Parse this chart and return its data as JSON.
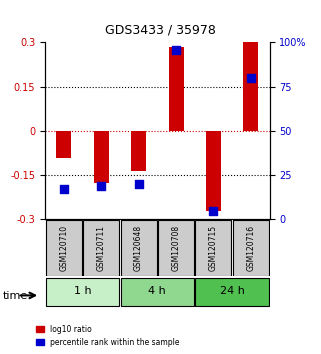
{
  "title": "GDS3433 / 35978",
  "samples": [
    "GSM120710",
    "GSM120711",
    "GSM120648",
    "GSM120708",
    "GSM120715",
    "GSM120716"
  ],
  "log10_ratio": [
    -0.09,
    -0.175,
    -0.135,
    0.285,
    -0.27,
    0.3
  ],
  "percentile_rank": [
    17,
    19,
    20,
    96,
    5,
    80
  ],
  "groups": [
    {
      "label": "1 h",
      "start": 0,
      "end": 1,
      "color": "#c8f0c8"
    },
    {
      "label": "4 h",
      "start": 2,
      "end": 3,
      "color": "#90d890"
    },
    {
      "label": "24 h",
      "start": 4,
      "end": 5,
      "color": "#50c050"
    }
  ],
  "ylim": [
    -0.3,
    0.3
  ],
  "yticks_left": [
    -0.3,
    -0.15,
    0,
    0.15,
    0.3
  ],
  "yticks_right": [
    0,
    25,
    50,
    75,
    100
  ],
  "bar_color": "#cc0000",
  "dot_color": "#0000cc",
  "hline_color": "#cc0000",
  "grid_color": "black",
  "bar_width": 0.4,
  "legend_items": [
    "log10 ratio",
    "percentile rank within the sample"
  ],
  "legend_colors": [
    "#cc0000",
    "#0000cc"
  ],
  "sample_box_color": "#cccccc",
  "time_label": "time"
}
